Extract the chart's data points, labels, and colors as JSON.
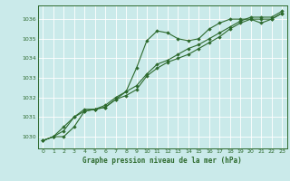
{
  "title": "Graphe pression niveau de la mer (hPa)",
  "bg_color": "#caeaea",
  "grid_color": "#ffffff",
  "line_color": "#2d6a2d",
  "marker_color": "#2d6a2d",
  "xlim": [
    -0.5,
    23.5
  ],
  "ylim": [
    1029.4,
    1036.7
  ],
  "yticks": [
    1030,
    1031,
    1032,
    1033,
    1034,
    1035,
    1036
  ],
  "xticks": [
    0,
    1,
    2,
    3,
    4,
    5,
    6,
    7,
    8,
    9,
    10,
    11,
    12,
    13,
    14,
    15,
    16,
    17,
    18,
    19,
    20,
    21,
    22,
    23
  ],
  "series": [
    [
      1029.8,
      1030.0,
      1030.0,
      1030.5,
      1031.3,
      1031.4,
      1031.5,
      1031.9,
      1032.3,
      1033.5,
      1034.9,
      1035.4,
      1035.3,
      1035.0,
      1034.9,
      1035.0,
      1035.5,
      1035.8,
      1036.0,
      1036.0,
      1036.0,
      1035.8,
      1036.0,
      1036.3
    ],
    [
      1029.8,
      1030.0,
      1030.3,
      1031.0,
      1031.3,
      1031.4,
      1031.5,
      1031.9,
      1032.1,
      1032.4,
      1033.1,
      1033.5,
      1033.8,
      1034.0,
      1034.2,
      1034.5,
      1034.8,
      1035.1,
      1035.5,
      1035.8,
      1036.0,
      1036.0,
      1036.0,
      1036.3
    ],
    [
      1029.8,
      1030.0,
      1030.5,
      1031.0,
      1031.4,
      1031.4,
      1031.6,
      1032.0,
      1032.3,
      1032.6,
      1033.2,
      1033.7,
      1033.9,
      1034.2,
      1034.5,
      1034.7,
      1035.0,
      1035.3,
      1035.6,
      1035.9,
      1036.1,
      1036.1,
      1036.1,
      1036.4
    ]
  ]
}
